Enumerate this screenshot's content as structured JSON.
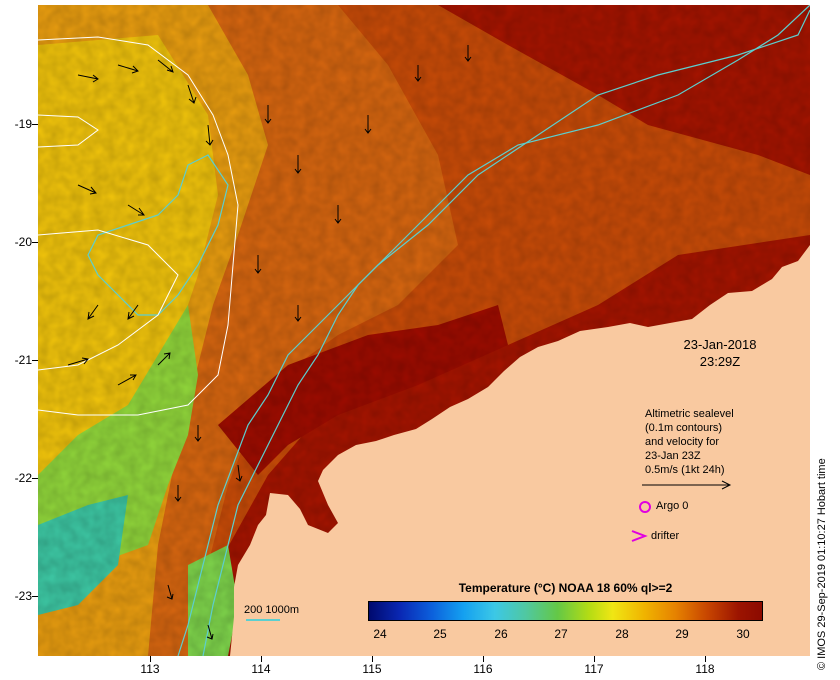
{
  "map": {
    "lat_labels": [
      "-19",
      "-20",
      "-21",
      "-22",
      "-23"
    ],
    "lon_labels": [
      "113",
      "114",
      "115",
      "116",
      "117",
      "118"
    ],
    "date": "23-Jan-2018",
    "time": "23:29Z",
    "colors": {
      "land": "#f9c9a0",
      "sea_warm": "#a21400",
      "contour": "#5ccfcf",
      "altimetry_contour": "#ffffff"
    }
  },
  "legend": {
    "altimetry_lines": [
      "Altimetric sealevel",
      "(0.1m contours)",
      "and velocity for",
      "23-Jan 23Z",
      "0.5m/s (1kt 24h)"
    ],
    "argo_label": "Argo 0",
    "drifter_label": "drifter",
    "depth_label": "200  1000m",
    "colorbar_title": "Temperature (°C) NOAA 18 60% ql>=2",
    "colorbar_ticks": [
      "24",
      "25",
      "26",
      "27",
      "28",
      "29",
      "30"
    ]
  },
  "credit": "© IMOS 29-Sep-2019 01:10:27 Hobart time"
}
